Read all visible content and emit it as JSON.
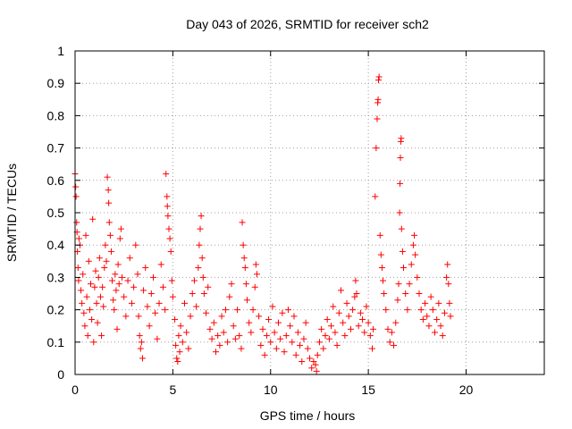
{
  "chart_data": {
    "type": "scatter",
    "title": "Day 043 of 2026, SRMTID for receiver sch2",
    "xlabel": "GPS time / hours",
    "ylabel": "SRMTID / TECUs",
    "xlim": [
      0,
      24
    ],
    "ylim": [
      0,
      1
    ],
    "xticks": [
      0,
      5,
      10,
      15,
      20
    ],
    "xtick_labels": [
      "0",
      "5",
      "10",
      "15",
      "20"
    ],
    "yticks": [
      0,
      0.1,
      0.2,
      0.3,
      0.4,
      0.5,
      0.6,
      0.7,
      0.8,
      0.9,
      1
    ],
    "ytick_labels": [
      "0",
      "0.1",
      "0.2",
      "0.3",
      "0.4",
      "0.5",
      "0.6",
      "0.7",
      "0.8",
      "0.9",
      "1"
    ],
    "grid": true,
    "marker": "plus",
    "series": [
      {
        "name": "SRMTID",
        "color": "#ff0000",
        "points": [
          [
            0.0,
            0.62
          ],
          [
            0.03,
            0.58
          ],
          [
            0.05,
            0.55
          ],
          [
            0.08,
            0.47
          ],
          [
            0.1,
            0.44
          ],
          [
            0.12,
            0.38
          ],
          [
            0.15,
            0.33
          ],
          [
            0.18,
            0.29
          ],
          [
            0.2,
            0.42
          ],
          [
            0.25,
            0.4
          ],
          [
            0.3,
            0.26
          ],
          [
            0.35,
            0.22
          ],
          [
            0.4,
            0.31
          ],
          [
            0.45,
            0.19
          ],
          [
            0.5,
            0.15
          ],
          [
            0.55,
            0.43
          ],
          [
            0.6,
            0.24
          ],
          [
            0.65,
            0.12
          ],
          [
            0.7,
            0.35
          ],
          [
            0.75,
            0.2
          ],
          [
            0.8,
            0.28
          ],
          [
            0.85,
            0.17
          ],
          [
            0.9,
            0.48
          ],
          [
            0.95,
            0.1
          ],
          [
            1.0,
            0.27
          ],
          [
            1.05,
            0.32
          ],
          [
            1.1,
            0.22
          ],
          [
            1.15,
            0.16
          ],
          [
            1.2,
            0.3
          ],
          [
            1.25,
            0.36
          ],
          [
            1.3,
            0.24
          ],
          [
            1.35,
            0.12
          ],
          [
            1.4,
            0.27
          ],
          [
            1.45,
            0.21
          ],
          [
            1.5,
            0.33
          ],
          [
            1.55,
            0.4
          ],
          [
            1.6,
            0.35
          ],
          [
            1.65,
            0.61
          ],
          [
            1.7,
            0.57
          ],
          [
            1.72,
            0.53
          ],
          [
            1.75,
            0.47
          ],
          [
            1.8,
            0.43
          ],
          [
            1.85,
            0.38
          ],
          [
            1.9,
            0.29
          ],
          [
            1.95,
            0.23
          ],
          [
            2.0,
            0.2
          ],
          [
            2.05,
            0.31
          ],
          [
            2.1,
            0.26
          ],
          [
            2.15,
            0.14
          ],
          [
            2.2,
            0.34
          ],
          [
            2.25,
            0.28
          ],
          [
            2.3,
            0.42
          ],
          [
            2.35,
            0.45
          ],
          [
            2.4,
            0.3
          ],
          [
            2.5,
            0.24
          ],
          [
            2.6,
            0.18
          ],
          [
            2.7,
            0.29
          ],
          [
            2.8,
            0.36
          ],
          [
            2.9,
            0.22
          ],
          [
            3.0,
            0.27
          ],
          [
            3.1,
            0.4
          ],
          [
            3.2,
            0.31
          ],
          [
            3.25,
            0.18
          ],
          [
            3.3,
            0.12
          ],
          [
            3.35,
            0.08
          ],
          [
            3.4,
            0.1
          ],
          [
            3.45,
            0.05
          ],
          [
            3.5,
            0.26
          ],
          [
            3.6,
            0.33
          ],
          [
            3.7,
            0.21
          ],
          [
            3.8,
            0.15
          ],
          [
            3.9,
            0.25
          ],
          [
            4.0,
            0.3
          ],
          [
            4.1,
            0.19
          ],
          [
            4.2,
            0.11
          ],
          [
            4.3,
            0.22
          ],
          [
            4.4,
            0.34
          ],
          [
            4.5,
            0.27
          ],
          [
            4.6,
            0.2
          ],
          [
            4.65,
            0.62
          ],
          [
            4.7,
            0.55
          ],
          [
            4.72,
            0.52
          ],
          [
            4.75,
            0.49
          ],
          [
            4.8,
            0.45
          ],
          [
            4.85,
            0.42
          ],
          [
            4.9,
            0.38
          ],
          [
            4.95,
            0.29
          ],
          [
            5.0,
            0.24
          ],
          [
            5.1,
            0.17
          ],
          [
            5.15,
            0.09
          ],
          [
            5.2,
            0.05
          ],
          [
            5.25,
            0.04
          ],
          [
            5.3,
            0.12
          ],
          [
            5.35,
            0.07
          ],
          [
            5.4,
            0.15
          ],
          [
            5.5,
            0.1
          ],
          [
            5.6,
            0.22
          ],
          [
            5.7,
            0.13
          ],
          [
            5.8,
            0.08
          ],
          [
            5.9,
            0.18
          ],
          [
            6.0,
            0.25
          ],
          [
            6.1,
            0.29
          ],
          [
            6.2,
            0.21
          ],
          [
            6.3,
            0.33
          ],
          [
            6.35,
            0.4
          ],
          [
            6.4,
            0.45
          ],
          [
            6.45,
            0.49
          ],
          [
            6.5,
            0.36
          ],
          [
            6.55,
            0.3
          ],
          [
            6.6,
            0.25
          ],
          [
            6.7,
            0.19
          ],
          [
            6.8,
            0.27
          ],
          [
            6.9,
            0.14
          ],
          [
            7.0,
            0.11
          ],
          [
            7.1,
            0.16
          ],
          [
            7.2,
            0.07
          ],
          [
            7.3,
            0.12
          ],
          [
            7.4,
            0.09
          ],
          [
            7.5,
            0.18
          ],
          [
            7.6,
            0.13
          ],
          [
            7.7,
            0.2
          ],
          [
            7.8,
            0.1
          ],
          [
            7.9,
            0.24
          ],
          [
            8.0,
            0.28
          ],
          [
            8.1,
            0.15
          ],
          [
            8.2,
            0.11
          ],
          [
            8.3,
            0.2
          ],
          [
            8.4,
            0.12
          ],
          [
            8.5,
            0.08
          ],
          [
            8.55,
            0.47
          ],
          [
            8.6,
            0.4
          ],
          [
            8.65,
            0.36
          ],
          [
            8.7,
            0.33
          ],
          [
            8.75,
            0.28
          ],
          [
            8.8,
            0.23
          ],
          [
            8.9,
            0.16
          ],
          [
            9.0,
            0.13
          ],
          [
            9.1,
            0.2
          ],
          [
            9.2,
            0.27
          ],
          [
            9.25,
            0.34
          ],
          [
            9.3,
            0.31
          ],
          [
            9.4,
            0.18
          ],
          [
            9.5,
            0.09
          ],
          [
            9.6,
            0.14
          ],
          [
            9.7,
            0.06
          ],
          [
            9.8,
            0.12
          ],
          [
            9.9,
            0.17
          ],
          [
            10.0,
            0.1
          ],
          [
            10.1,
            0.21
          ],
          [
            10.2,
            0.13
          ],
          [
            10.3,
            0.08
          ],
          [
            10.4,
            0.16
          ],
          [
            10.5,
            0.11
          ],
          [
            10.6,
            0.19
          ],
          [
            10.7,
            0.07
          ],
          [
            10.8,
            0.12
          ],
          [
            10.9,
            0.2
          ],
          [
            11.0,
            0.15
          ],
          [
            11.1,
            0.1
          ],
          [
            11.2,
            0.18
          ],
          [
            11.3,
            0.06
          ],
          [
            11.4,
            0.13
          ],
          [
            11.5,
            0.09
          ],
          [
            11.6,
            0.04
          ],
          [
            11.7,
            0.11
          ],
          [
            11.8,
            0.16
          ],
          [
            11.9,
            0.08
          ],
          [
            12.0,
            0.05
          ],
          [
            12.1,
            0.02
          ],
          [
            12.2,
            0.04
          ],
          [
            12.3,
            0.03
          ],
          [
            12.35,
            0.01
          ],
          [
            12.4,
            0.06
          ],
          [
            12.5,
            0.1
          ],
          [
            12.6,
            0.14
          ],
          [
            12.7,
            0.08
          ],
          [
            12.8,
            0.12
          ],
          [
            12.9,
            0.17
          ],
          [
            13.0,
            0.11
          ],
          [
            13.1,
            0.15
          ],
          [
            13.2,
            0.21
          ],
          [
            13.3,
            0.13
          ],
          [
            13.4,
            0.09
          ],
          [
            13.5,
            0.19
          ],
          [
            13.6,
            0.26
          ],
          [
            13.7,
            0.16
          ],
          [
            13.8,
            0.12
          ],
          [
            13.9,
            0.22
          ],
          [
            14.0,
            0.18
          ],
          [
            14.1,
            0.14
          ],
          [
            14.2,
            0.2
          ],
          [
            14.3,
            0.24
          ],
          [
            14.35,
            0.29
          ],
          [
            14.4,
            0.25
          ],
          [
            14.5,
            0.15
          ],
          [
            14.6,
            0.19
          ],
          [
            14.7,
            0.17
          ],
          [
            14.8,
            0.13
          ],
          [
            14.9,
            0.21
          ],
          [
            15.0,
            0.16
          ],
          [
            15.1,
            0.12
          ],
          [
            15.2,
            0.08
          ],
          [
            15.25,
            0.14
          ],
          [
            15.35,
            0.55
          ],
          [
            15.4,
            0.7
          ],
          [
            15.45,
            0.79
          ],
          [
            15.48,
            0.84
          ],
          [
            15.5,
            0.85
          ],
          [
            15.52,
            0.91
          ],
          [
            15.55,
            0.92
          ],
          [
            15.6,
            0.43
          ],
          [
            15.65,
            0.37
          ],
          [
            15.7,
            0.33
          ],
          [
            15.75,
            0.29
          ],
          [
            15.8,
            0.25
          ],
          [
            15.9,
            0.2
          ],
          [
            16.0,
            0.14
          ],
          [
            16.1,
            0.1
          ],
          [
            16.2,
            0.13
          ],
          [
            16.3,
            0.09
          ],
          [
            16.4,
            0.16
          ],
          [
            16.5,
            0.23
          ],
          [
            16.55,
            0.28
          ],
          [
            16.6,
            0.5
          ],
          [
            16.62,
            0.59
          ],
          [
            16.64,
            0.67
          ],
          [
            16.66,
            0.72
          ],
          [
            16.68,
            0.73
          ],
          [
            16.7,
            0.45
          ],
          [
            16.75,
            0.38
          ],
          [
            16.8,
            0.33
          ],
          [
            16.9,
            0.25
          ],
          [
            17.0,
            0.2
          ],
          [
            17.1,
            0.28
          ],
          [
            17.2,
            0.34
          ],
          [
            17.3,
            0.4
          ],
          [
            17.35,
            0.43
          ],
          [
            17.4,
            0.37
          ],
          [
            17.5,
            0.3
          ],
          [
            17.6,
            0.25
          ],
          [
            17.7,
            0.2
          ],
          [
            17.8,
            0.17
          ],
          [
            17.9,
            0.22
          ],
          [
            18.0,
            0.18
          ],
          [
            18.1,
            0.15
          ],
          [
            18.2,
            0.24
          ],
          [
            18.3,
            0.2
          ],
          [
            18.4,
            0.13
          ],
          [
            18.5,
            0.17
          ],
          [
            18.6,
            0.22
          ],
          [
            18.7,
            0.15
          ],
          [
            18.8,
            0.12
          ],
          [
            18.9,
            0.19
          ],
          [
            19.0,
            0.3
          ],
          [
            19.05,
            0.34
          ],
          [
            19.1,
            0.28
          ],
          [
            19.15,
            0.22
          ],
          [
            19.2,
            0.18
          ]
        ]
      }
    ]
  }
}
